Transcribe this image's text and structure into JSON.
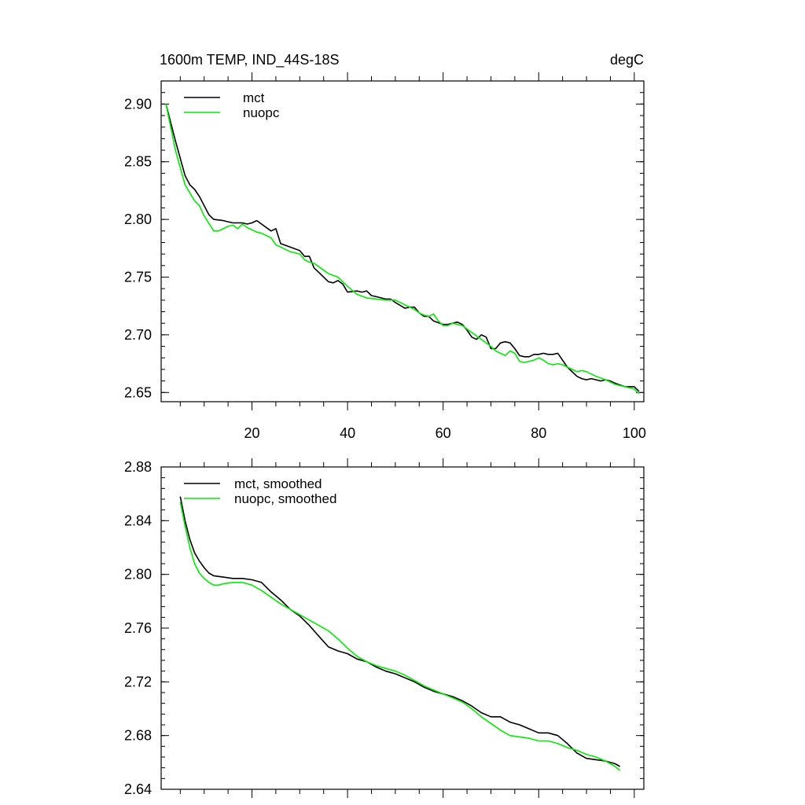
{
  "chart_data": [
    {
      "type": "line",
      "title": "1600m TEMP, IND_44S-18S",
      "units": "degC",
      "xlim": [
        1,
        102
      ],
      "ylim": [
        2.642,
        2.92
      ],
      "xticks": [
        20,
        40,
        60,
        80,
        100
      ],
      "xtick_labels": [
        "20",
        "40",
        "60",
        "80",
        "100"
      ],
      "yticks": [
        2.65,
        2.7,
        2.75,
        2.8,
        2.85,
        2.9
      ],
      "ytick_labels": [
        "2.65",
        "2.70",
        "2.75",
        "2.80",
        "2.85",
        "2.90"
      ],
      "legend": "top-left",
      "colors": {
        "mct": "#000000",
        "nuopc": "#00ee00"
      },
      "series": [
        {
          "name": "mct",
          "x": [
            2,
            4,
            6,
            7,
            8,
            9,
            10,
            11,
            12,
            14,
            15,
            16,
            17,
            18,
            19,
            20,
            21,
            22,
            24,
            25,
            26,
            28,
            30,
            31,
            32,
            33,
            34,
            36,
            37,
            38,
            39,
            40,
            42,
            43,
            44,
            45,
            46,
            48,
            49,
            50,
            52,
            53,
            54,
            55,
            56,
            57,
            58,
            60,
            61,
            62,
            63,
            64,
            65,
            66,
            67,
            68,
            69,
            70,
            71,
            72,
            73,
            74,
            75,
            76,
            77,
            78,
            79,
            80,
            81,
            82,
            83,
            84,
            86,
            88,
            89,
            90,
            91,
            92,
            93,
            94,
            95,
            96,
            98,
            99,
            100,
            101
          ],
          "values": [
            2.9,
            2.868,
            2.838,
            2.83,
            2.826,
            2.82,
            2.812,
            2.804,
            2.8,
            2.799,
            2.798,
            2.797,
            2.797,
            2.797,
            2.796,
            2.797,
            2.799,
            2.796,
            2.79,
            2.792,
            2.779,
            2.776,
            2.773,
            2.768,
            2.768,
            2.758,
            2.754,
            2.746,
            2.745,
            2.747,
            2.744,
            2.737,
            2.738,
            2.737,
            2.738,
            2.734,
            2.733,
            2.731,
            2.731,
            2.728,
            2.723,
            2.724,
            2.724,
            2.719,
            2.716,
            2.716,
            2.712,
            2.709,
            2.709,
            2.71,
            2.711,
            2.709,
            2.704,
            2.698,
            2.696,
            2.7,
            2.698,
            2.688,
            2.688,
            2.693,
            2.694,
            2.693,
            2.688,
            2.682,
            2.681,
            2.681,
            2.683,
            2.683,
            2.684,
            2.683,
            2.683,
            2.684,
            2.672,
            2.664,
            2.662,
            2.661,
            2.662,
            2.661,
            2.66,
            2.661,
            2.66,
            2.658,
            2.655,
            2.655,
            2.655,
            2.651
          ]
        },
        {
          "name": "nuopc",
          "x": [
            2,
            4,
            6,
            8,
            9,
            10,
            12,
            13,
            14,
            15,
            16,
            17,
            18,
            19,
            20,
            21,
            22,
            24,
            25,
            26,
            28,
            30,
            31,
            32,
            33,
            34,
            35,
            36,
            38,
            40,
            42,
            44,
            46,
            48,
            50,
            52,
            54,
            55,
            56,
            57,
            58,
            59,
            60,
            61,
            62,
            64,
            66,
            68,
            70,
            71,
            72,
            73,
            74,
            75,
            76,
            77,
            78,
            79,
            80,
            81,
            82,
            83,
            84,
            85,
            86,
            87,
            88,
            89,
            90,
            91,
            92,
            94,
            96,
            98,
            100,
            101
          ],
          "values": [
            2.9,
            2.86,
            2.83,
            2.816,
            2.812,
            2.803,
            2.79,
            2.79,
            2.792,
            2.794,
            2.795,
            2.792,
            2.796,
            2.793,
            2.791,
            2.789,
            2.788,
            2.784,
            2.778,
            2.776,
            2.772,
            2.77,
            2.765,
            2.763,
            2.762,
            2.759,
            2.756,
            2.753,
            2.75,
            2.742,
            2.735,
            2.732,
            2.731,
            2.73,
            2.73,
            2.726,
            2.722,
            2.719,
            2.717,
            2.716,
            2.718,
            2.712,
            2.708,
            2.708,
            2.71,
            2.708,
            2.702,
            2.696,
            2.69,
            2.686,
            2.684,
            2.682,
            2.686,
            2.684,
            2.677,
            2.676,
            2.677,
            2.678,
            2.68,
            2.678,
            2.675,
            2.674,
            2.675,
            2.674,
            2.672,
            2.67,
            2.668,
            2.669,
            2.668,
            2.666,
            2.664,
            2.661,
            2.657,
            2.655,
            2.653,
            2.649
          ]
        }
      ]
    },
    {
      "type": "line",
      "title": "",
      "xlim": [
        1,
        102
      ],
      "ylim": [
        2.64,
        2.88
      ],
      "xticks": [
        20,
        40,
        60,
        80,
        100
      ],
      "xtick_labels": [],
      "yticks": [
        2.64,
        2.68,
        2.72,
        2.76,
        2.8,
        2.84,
        2.88
      ],
      "ytick_labels": [
        "2.64",
        "2.68",
        "2.72",
        "2.76",
        "2.80",
        "2.84",
        "2.88"
      ],
      "legend": "top-left",
      "colors": {
        "mct": "#000000",
        "nuopc": "#00ee00"
      },
      "series": [
        {
          "name": "mct, smoothed",
          "x": [
            5,
            6,
            7,
            8,
            9,
            10,
            11,
            12,
            14,
            16,
            18,
            20,
            22,
            24,
            26,
            28,
            30,
            32,
            34,
            36,
            38,
            40,
            42,
            44,
            46,
            48,
            50,
            52,
            54,
            56,
            58,
            60,
            62,
            64,
            66,
            68,
            70,
            72,
            74,
            76,
            78,
            80,
            82,
            84,
            86,
            88,
            90,
            92,
            94,
            96,
            97
          ],
          "values": [
            2.858,
            2.84,
            2.826,
            2.816,
            2.81,
            2.805,
            2.801,
            2.799,
            2.798,
            2.797,
            2.797,
            2.796,
            2.794,
            2.787,
            2.781,
            2.774,
            2.769,
            2.762,
            2.754,
            2.746,
            2.743,
            2.741,
            2.737,
            2.735,
            2.731,
            2.728,
            2.726,
            2.723,
            2.72,
            2.716,
            2.713,
            2.711,
            2.709,
            2.706,
            2.702,
            2.697,
            2.694,
            2.694,
            2.69,
            2.688,
            2.685,
            2.682,
            2.682,
            2.68,
            2.674,
            2.667,
            2.663,
            2.662,
            2.661,
            2.659,
            2.657
          ]
        },
        {
          "name": "nuopc, smoothed",
          "x": [
            5,
            6,
            7,
            8,
            9,
            10,
            11,
            12,
            13,
            14,
            16,
            17,
            18,
            20,
            22,
            24,
            26,
            28,
            30,
            32,
            34,
            36,
            38,
            40,
            42,
            44,
            46,
            48,
            50,
            52,
            54,
            56,
            58,
            60,
            62,
            64,
            66,
            68,
            70,
            72,
            74,
            76,
            78,
            80,
            82,
            84,
            86,
            88,
            90,
            92,
            94,
            96,
            97
          ],
          "values": [
            2.854,
            2.836,
            2.82,
            2.808,
            2.801,
            2.797,
            2.794,
            2.792,
            2.792,
            2.793,
            2.794,
            2.794,
            2.794,
            2.792,
            2.788,
            2.783,
            2.778,
            2.774,
            2.77,
            2.766,
            2.762,
            2.758,
            2.752,
            2.745,
            2.739,
            2.735,
            2.732,
            2.73,
            2.728,
            2.725,
            2.721,
            2.717,
            2.714,
            2.711,
            2.708,
            2.705,
            2.7,
            2.694,
            2.689,
            2.684,
            2.68,
            2.679,
            2.678,
            2.676,
            2.676,
            2.674,
            2.671,
            2.669,
            2.666,
            2.664,
            2.661,
            2.657,
            2.654
          ]
        }
      ]
    }
  ]
}
